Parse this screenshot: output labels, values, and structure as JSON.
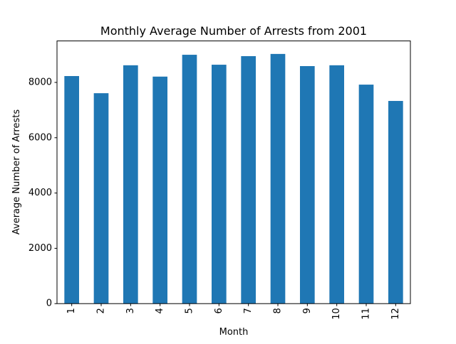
{
  "chart_data": {
    "type": "bar",
    "title": "Monthly Average Number of Arrests from 2001",
    "xlabel": "Month",
    "ylabel": "Average Number of Arrests",
    "categories": [
      "1",
      "2",
      "3",
      "4",
      "5",
      "6",
      "7",
      "8",
      "9",
      "10",
      "11",
      "12"
    ],
    "values": [
      8230,
      7610,
      8620,
      8210,
      9000,
      8640,
      8950,
      9030,
      8590,
      8620,
      7920,
      7330
    ],
    "ylim": [
      0,
      9500
    ],
    "yticks": [
      0,
      2000,
      4000,
      6000,
      8000
    ],
    "ytick_labels": [
      "0",
      "2000",
      "4000",
      "6000",
      "8000"
    ],
    "bar_color": "#1f77b4",
    "grid": false,
    "legend": "none"
  }
}
